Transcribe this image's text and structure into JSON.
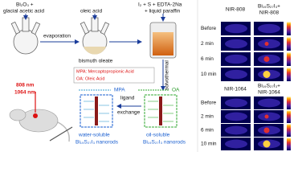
{
  "steps": {
    "start_reagents": [
      "Bi₂O₃ +",
      "glacial acetic acid"
    ],
    "oleic_acid": "oleic acid",
    "reagents2": [
      "I₂ + S + EDTA-2Na",
      "+ liquid paraffin"
    ],
    "evaporation": "evaporation",
    "bismuth_oleate": "bismuth oleate",
    "solvothermal": "solvothermal",
    "ligand_exchange": [
      "ligand",
      "exchange"
    ]
  },
  "legend": {
    "mpa": "MPA: Mercaptopropionic Acid",
    "oa": "OA: Oleic Acid",
    "mpa_short": "MPA",
    "oa_short": "OA"
  },
  "products": {
    "water": [
      "water-soluble",
      "Bi₁₉S₂₇I₃ nanorods"
    ],
    "oil": [
      "oil-soluble",
      "Bi₁₉S₂₇I₃ nanorods"
    ]
  },
  "lasers": [
    "808 nm",
    "1064 nm"
  ],
  "thermal": [
    {
      "headers": [
        "NIR-808",
        "Bi₁₉S₂₇I₃+",
        "NIR-808"
      ],
      "rows": [
        "Before",
        "2 min",
        "6 min",
        "10 min"
      ]
    },
    {
      "headers": [
        "NIR-1064",
        "Bi₁₉S₂₇I₃+",
        "NIR-1064"
      ],
      "rows": [
        "Before",
        "2 min",
        "6 min",
        "10 min"
      ]
    }
  ]
}
